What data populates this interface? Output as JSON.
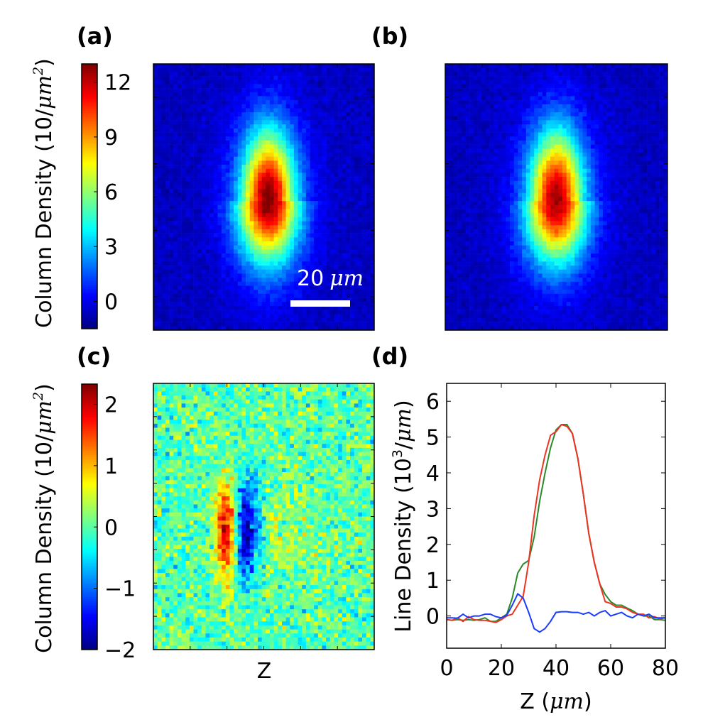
{
  "chart_data": [
    {
      "panel": "(a)",
      "type": "heatmap",
      "colormap": "jet",
      "colorbar": {
        "range": [
          -1.5,
          13
        ],
        "ticks": [
          0,
          3,
          6,
          9,
          12
        ],
        "tick_labels": [
          "0",
          "3",
          "6",
          "9",
          "12"
        ],
        "label": {
          "text": "Column Density (10/",
          "unit": "μm",
          "exp": "2",
          "close": ")"
        }
      },
      "scale_bar": {
        "value": "20",
        "unit": "μm",
        "color": "#ffffff"
      }
    },
    {
      "panel": "(b)",
      "type": "heatmap",
      "colormap": "jet",
      "colorbar_shared_with": "(a)"
    },
    {
      "panel": "(c)",
      "type": "heatmap",
      "colormap": "jet",
      "xlabel": "Z",
      "colorbar": {
        "range": [
          -2,
          2.33
        ],
        "ticks": [
          -2,
          -1,
          0,
          1,
          2
        ],
        "tick_labels": [
          "−2",
          "−1",
          "0",
          "1",
          "2"
        ],
        "label": {
          "text": "Column Density (10/",
          "unit": "μm",
          "exp": "2",
          "close": ")"
        }
      }
    },
    {
      "panel": "(d)",
      "type": "line",
      "xlabel": {
        "text": "Z (",
        "unit": "μm",
        "close": ")"
      },
      "ylabel": {
        "text": "Line Density (10",
        "exp": "3",
        "slash": "/",
        "unit": "μm",
        "close": ")"
      },
      "xlim": [
        0,
        80
      ],
      "ylim": [
        -0.9,
        6.5
      ],
      "xticks": [
        0,
        20,
        40,
        60,
        80
      ],
      "yticks": [
        0,
        1,
        2,
        3,
        4,
        5,
        6
      ],
      "grid": false,
      "x": [
        0,
        2,
        4,
        6,
        8,
        10,
        12,
        14,
        16,
        18,
        20,
        22,
        24,
        26,
        28,
        30,
        32,
        34,
        36,
        38,
        40,
        42,
        44,
        46,
        48,
        50,
        52,
        54,
        56,
        58,
        60,
        62,
        64,
        66,
        68,
        70,
        72,
        74,
        76,
        78,
        80
      ],
      "series": [
        {
          "color": "#2a8a2a",
          "values": [
            -0.1,
            -0.12,
            -0.1,
            -0.12,
            -0.1,
            -0.12,
            -0.1,
            -0.05,
            -0.15,
            -0.15,
            -0.05,
            0.05,
            0.5,
            1.2,
            1.45,
            1.55,
            2.2,
            3.2,
            4.0,
            4.7,
            5.2,
            5.35,
            5.35,
            5.1,
            4.4,
            3.4,
            2.3,
            1.5,
            0.9,
            0.6,
            0.4,
            0.3,
            0.3,
            0.22,
            0.15,
            0.05,
            0.0,
            0.0,
            -0.1,
            -0.1,
            -0.12
          ]
        },
        {
          "color": "#ee3322",
          "values": [
            -0.1,
            -0.12,
            -0.05,
            -0.15,
            -0.02,
            -0.1,
            -0.12,
            -0.12,
            -0.15,
            -0.18,
            -0.1,
            0.0,
            0.05,
            0.3,
            0.55,
            1.5,
            2.8,
            3.8,
            4.5,
            5.05,
            5.15,
            5.35,
            5.3,
            5.1,
            4.4,
            3.4,
            2.3,
            1.5,
            0.9,
            0.4,
            0.35,
            0.25,
            0.25,
            0.2,
            0.1,
            0.05,
            0.05,
            -0.05,
            -0.02,
            -0.08,
            -0.05
          ]
        },
        {
          "color": "#1a3cff",
          "values": [
            -0.05,
            -0.05,
            -0.06,
            0.05,
            -0.05,
            0.0,
            0.0,
            0.05,
            0.05,
            -0.02,
            -0.05,
            0.02,
            0.3,
            0.62,
            0.5,
            0.1,
            -0.35,
            -0.45,
            -0.35,
            -0.15,
            0.1,
            0.12,
            0.12,
            0.1,
            0.1,
            0.05,
            0.1,
            0.0,
            0.1,
            0.15,
            0.0,
            0.05,
            0.1,
            0.0,
            -0.05,
            0.05,
            0.0,
            0.05,
            -0.05,
            -0.05,
            -0.05
          ]
        }
      ]
    }
  ]
}
